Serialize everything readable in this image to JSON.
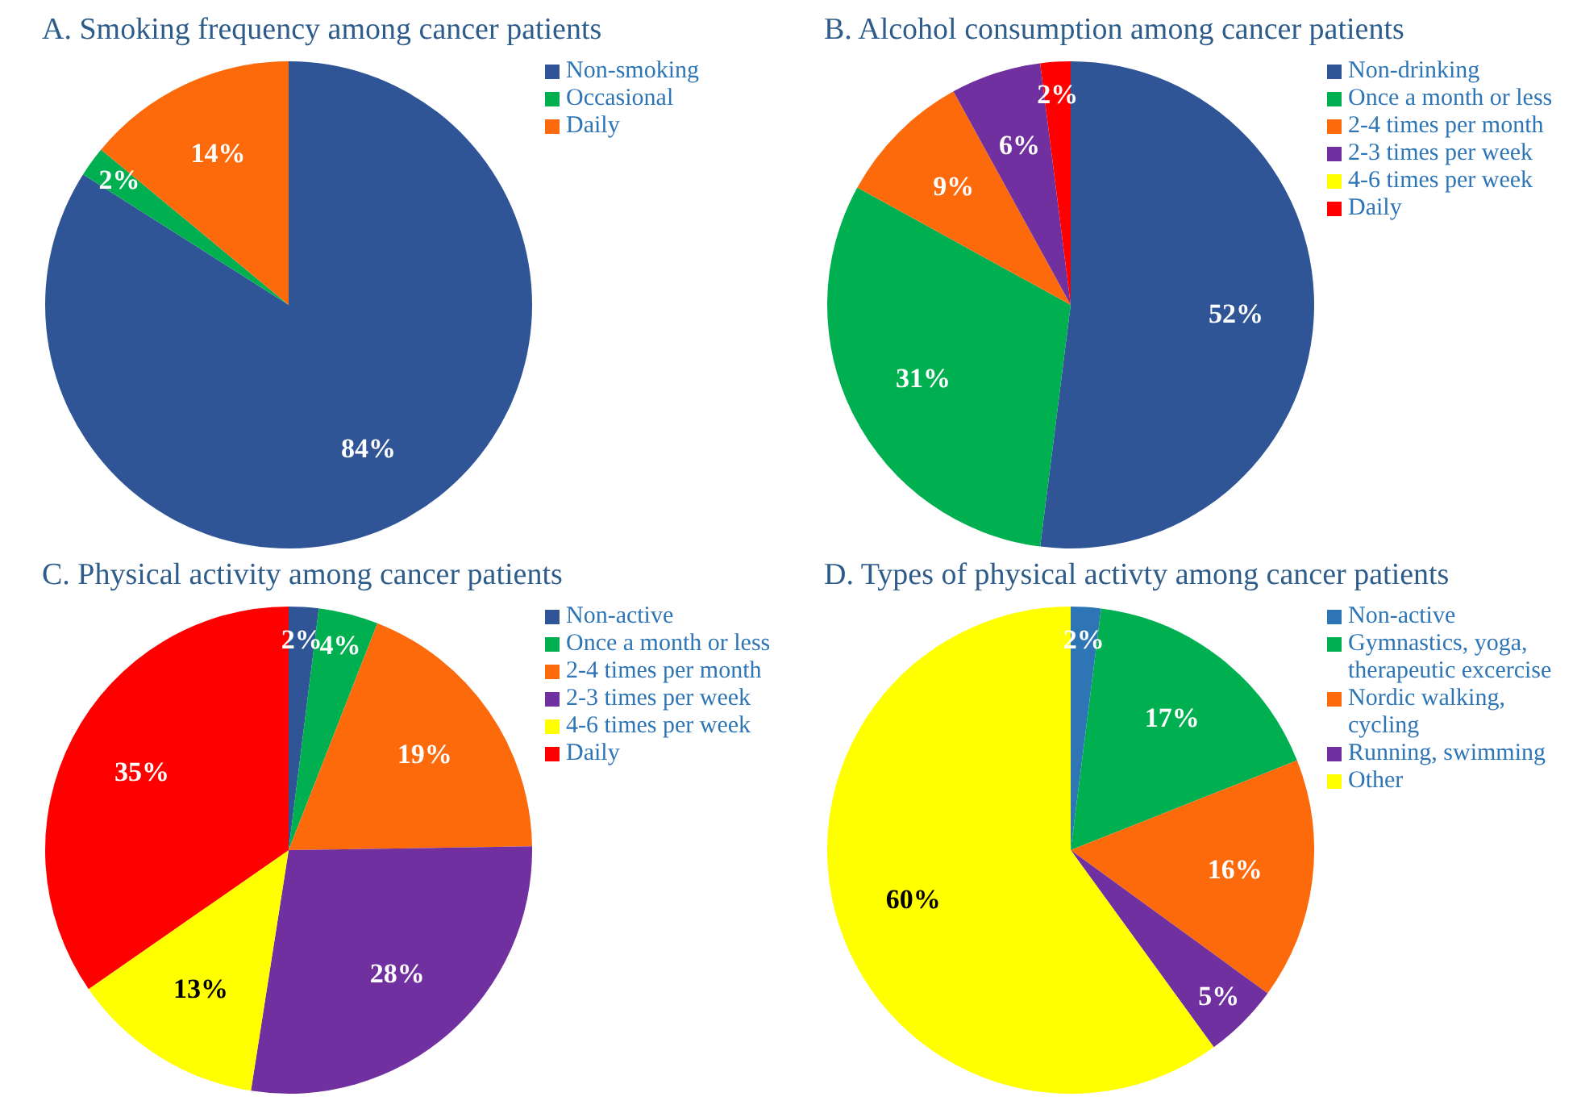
{
  "chart_data": [
    {
      "type": "pie",
      "title": "A.  Smoking frequency among cancer patients",
      "categories": [
        "Non-smoking",
        "Occasional",
        "Daily"
      ],
      "values": [
        84,
        2,
        14
      ],
      "colors": [
        "#2f5597",
        "#00b050",
        "#fc6a0c"
      ],
      "value_labels": [
        "84%",
        "2%",
        "14%"
      ],
      "legend": "top right"
    },
    {
      "type": "pie",
      "title": "B.  Alcohol consumption among cancer patients",
      "categories": [
        "Non-drinking",
        "Once a month or less",
        "2-4 times per month",
        "2-3 times per week",
        "4-6 times per week",
        "Daily"
      ],
      "values": [
        52,
        31,
        9,
        6,
        0,
        2
      ],
      "colors": [
        "#2f5597",
        "#00b050",
        "#fc6a0c",
        "#7030a0",
        "#ffff00",
        "#ff0000"
      ],
      "value_labels": [
        "52%",
        "31%",
        "9%",
        "6%",
        null,
        "2%"
      ],
      "legend": "top right"
    },
    {
      "type": "pie",
      "title": "C.  Physical activity among cancer patients",
      "categories": [
        "Non-active",
        "Once a month or less",
        "2-4 times per month",
        "2-3 times per week",
        "4-6 times per week",
        "Daily"
      ],
      "values": [
        2,
        4,
        19,
        28,
        13,
        35
      ],
      "colors": [
        "#2f5597",
        "#00b050",
        "#fc6a0c",
        "#7030a0",
        "#ffff00",
        "#ff0000"
      ],
      "value_labels": [
        "2%",
        "4%",
        "19%",
        "28%",
        "13%",
        "35%"
      ],
      "legend": "top right"
    },
    {
      "type": "pie",
      "title": "D.  Types of physical activty among cancer patients",
      "categories": [
        "Non-active",
        "Gymnastics, yoga, therapeutic excercise",
        "Nordic walking, cycling",
        "Running, swimming",
        "Other"
      ],
      "values": [
        2,
        17,
        16,
        5,
        60
      ],
      "colors": [
        "#2e75b6",
        "#00b050",
        "#fc6a0c",
        "#7030a0",
        "#ffff00"
      ],
      "value_labels": [
        "2%",
        "17%",
        "16%",
        "5%",
        "60%"
      ],
      "legend": "top right"
    }
  ]
}
